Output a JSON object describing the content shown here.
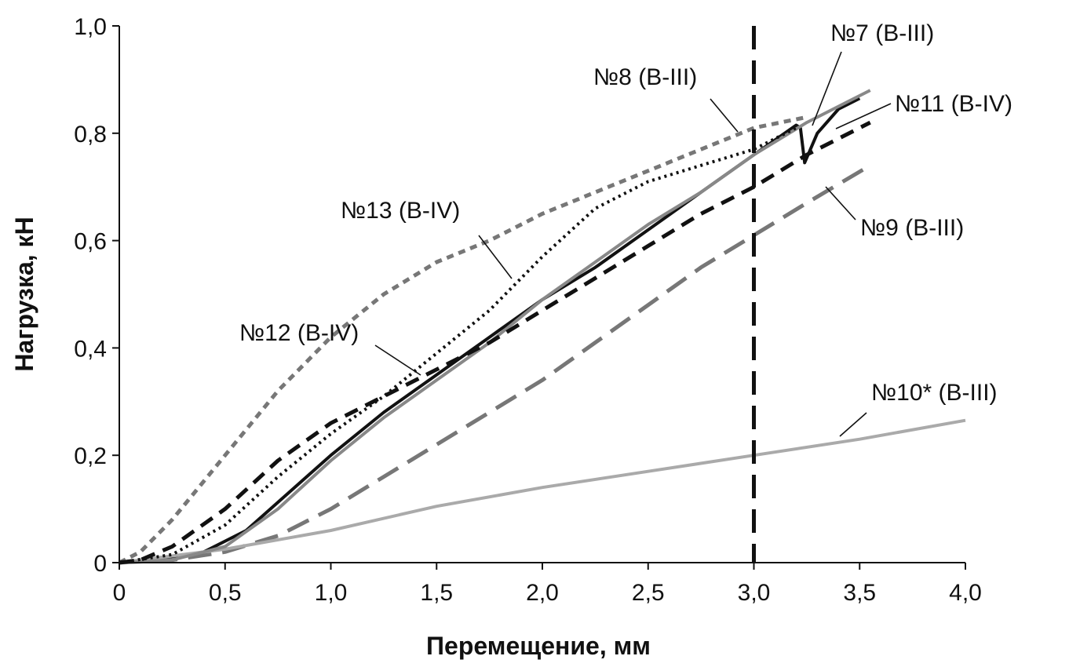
{
  "chart_data": {
    "type": "line",
    "title": "",
    "xlabel": "Перемещение, мм",
    "ylabel": "Нагрузка, кН",
    "xlim": [
      0,
      4.0
    ],
    "ylim": [
      0,
      1.0
    ],
    "grid": false,
    "x_ticks": [
      0,
      0.5,
      1.0,
      1.5,
      2.0,
      2.5,
      3.0,
      3.5,
      4.0
    ],
    "x_tick_labels": [
      "0",
      "0,5",
      "1,0",
      "1,5",
      "2,0",
      "2,5",
      "3,0",
      "3,5",
      "4,0"
    ],
    "y_ticks": [
      0,
      0.2,
      0.4,
      0.6,
      0.8,
      1.0
    ],
    "y_tick_labels": [
      "0",
      "0,2",
      "0,4",
      "0,6",
      "0,8",
      "1,0"
    ],
    "reference_line": {
      "x": 3.0,
      "style": "long-dash",
      "color": "#111111"
    },
    "series": [
      {
        "name": "№7 (B-III)",
        "color": "#111111",
        "style": "solid",
        "x": [
          0,
          0.2,
          0.4,
          0.6,
          0.8,
          1.0,
          1.25,
          1.5,
          1.75,
          2.0,
          2.25,
          2.5,
          2.75,
          3.0,
          3.2,
          3.22,
          3.24,
          3.3,
          3.4,
          3.5
        ],
        "y": [
          0,
          0.005,
          0.02,
          0.06,
          0.13,
          0.2,
          0.28,
          0.35,
          0.42,
          0.49,
          0.55,
          0.62,
          0.69,
          0.76,
          0.815,
          0.81,
          0.745,
          0.8,
          0.845,
          0.865
        ]
      },
      {
        "name": "№8 (B-III)",
        "color": "#777777",
        "style": "short-dash",
        "x": [
          0,
          0.1,
          0.25,
          0.5,
          0.75,
          1.0,
          1.25,
          1.5,
          1.75,
          2.0,
          2.25,
          2.5,
          2.75,
          3.0,
          3.25
        ],
        "y": [
          0,
          0.02,
          0.08,
          0.2,
          0.32,
          0.42,
          0.5,
          0.56,
          0.6,
          0.65,
          0.69,
          0.73,
          0.77,
          0.81,
          0.83
        ]
      },
      {
        "name": "№9 (B-III)",
        "color": "#777777",
        "style": "long-dash",
        "x": [
          0,
          0.25,
          0.5,
          0.75,
          1.0,
          1.25,
          1.5,
          1.75,
          2.0,
          2.25,
          2.5,
          2.75,
          3.0,
          3.25,
          3.55
        ],
        "y": [
          0,
          0.005,
          0.02,
          0.05,
          0.1,
          0.16,
          0.22,
          0.28,
          0.34,
          0.41,
          0.48,
          0.55,
          0.61,
          0.67,
          0.74
        ]
      },
      {
        "name": "№10* (B-III)",
        "color": "#aaaaaa",
        "style": "solid",
        "x": [
          0,
          0.5,
          1.0,
          1.5,
          2.0,
          2.5,
          3.0,
          3.5,
          4.0
        ],
        "y": [
          0,
          0.025,
          0.06,
          0.105,
          0.14,
          0.17,
          0.2,
          0.23,
          0.265
        ]
      },
      {
        "name": "№11 (B-IV)",
        "color": "#888888",
        "style": "solid",
        "x": [
          0,
          0.25,
          0.5,
          0.75,
          1.0,
          1.25,
          1.5,
          1.75,
          2.0,
          2.25,
          2.5,
          2.75,
          3.0,
          3.25,
          3.55
        ],
        "y": [
          0,
          0.005,
          0.03,
          0.1,
          0.19,
          0.27,
          0.34,
          0.41,
          0.49,
          0.56,
          0.63,
          0.69,
          0.76,
          0.82,
          0.88
        ]
      },
      {
        "name": "№12 (B-IV)",
        "color": "#111111",
        "style": "dash",
        "x": [
          0,
          0.1,
          0.25,
          0.5,
          0.75,
          1.0,
          1.25,
          1.5,
          1.75,
          2.0,
          2.25,
          2.5,
          2.75,
          3.0,
          3.25,
          3.55
        ],
        "y": [
          0,
          0.005,
          0.03,
          0.1,
          0.19,
          0.26,
          0.31,
          0.36,
          0.41,
          0.47,
          0.53,
          0.59,
          0.65,
          0.7,
          0.76,
          0.82
        ]
      },
      {
        "name": "№13 (B-IV)",
        "color": "#111111",
        "style": "dotted",
        "x": [
          0,
          0.25,
          0.5,
          0.75,
          1.0,
          1.25,
          1.5,
          1.75,
          2.0,
          2.25,
          2.5,
          2.75,
          3.0,
          3.2
        ],
        "y": [
          0,
          0.015,
          0.07,
          0.16,
          0.24,
          0.31,
          0.39,
          0.47,
          0.57,
          0.66,
          0.71,
          0.74,
          0.77,
          0.81
        ]
      }
    ],
    "annotations": [
      {
        "text": "№7 (B-III)",
        "series": "№7 (B-III)"
      },
      {
        "text": "№8 (B-III)",
        "series": "№8 (B-III)"
      },
      {
        "text": "№11 (B-IV)",
        "series": "№11 (B-IV)"
      },
      {
        "text": "№13 (B-IV)",
        "series": "№13 (B-IV)"
      },
      {
        "text": "№9 (B-III)",
        "series": "№9 (B-III)"
      },
      {
        "text": "№12 (B-IV)",
        "series": "№12 (B-IV)"
      },
      {
        "text": "№10* (B-III)",
        "series": "№10* (B-III)"
      }
    ]
  }
}
